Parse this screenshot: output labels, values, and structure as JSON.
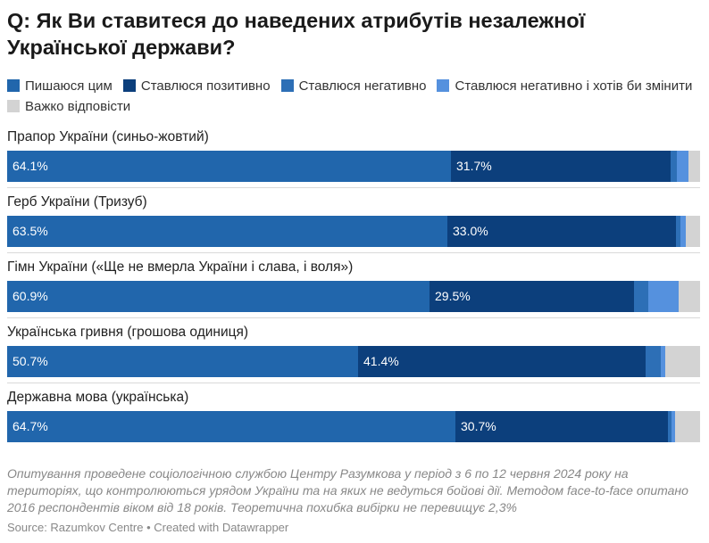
{
  "title": "Q: Як Ви ставитеся до наведених атрибутів незалежної Української держави?",
  "chart_data": {
    "type": "bar",
    "orientation": "horizontal",
    "stacked": true,
    "title": "Q: Як Ви ставитеся до наведених атрибутів незалежної Української держави?",
    "xlim": [
      0,
      100
    ],
    "unit": "%",
    "categories": [
      "Прапор України (синьо-жовтий)",
      "Герб України (Тризуб)",
      "Гімн України («Ще не вмерла України і слава, і воля»)",
      "Українська гривня (грошова одиниця)",
      "Державна мова (українська)"
    ],
    "series": [
      {
        "name": "Пишаюся цим",
        "color": "#2166ac",
        "values": [
          64.1,
          63.5,
          60.9,
          50.7,
          64.7
        ],
        "labels": [
          "64.1%",
          "63.5%",
          "60.9%",
          "50.7%",
          "64.7%"
        ]
      },
      {
        "name": "Ставлюся позитивно",
        "color": "#0c3f7c",
        "values": [
          31.7,
          33.0,
          29.5,
          41.4,
          30.7
        ],
        "labels": [
          "31.7%",
          "33.0%",
          "29.5%",
          "41.4%",
          "30.7%"
        ]
      },
      {
        "name": "Ставлюся негативно",
        "color": "#2d6fb6",
        "values": [
          0.8,
          0.7,
          2.1,
          2.2,
          0.5
        ],
        "labels": [
          "",
          "",
          "",
          "",
          ""
        ]
      },
      {
        "name": "Ставлюся негативно і хотів би змінити",
        "color": "#5591de",
        "values": [
          1.7,
          0.7,
          4.4,
          0.7,
          0.5
        ],
        "labels": [
          "",
          "",
          "",
          "",
          ""
        ]
      },
      {
        "name": "Важко відповісти",
        "color": "#d3d3d3",
        "values": [
          1.7,
          2.1,
          3.1,
          5.0,
          3.6
        ],
        "labels": [
          "",
          "",
          "",
          "",
          ""
        ]
      }
    ],
    "legend_position": "top",
    "grid": false
  },
  "note": "Опитування проведене соціологічною службою Центру Разумкова у період з 6 по 12 червня 2024 року на територіях, що контролюються урядом України та на яких не ведуться бойові дії. Методом face-to-face опитано 2016 респондентів віком від 18 років. Теоретична похибка вибірки не перевищує 2,3%",
  "source": "Source: Razumkov Centre • Created with Datawrapper"
}
